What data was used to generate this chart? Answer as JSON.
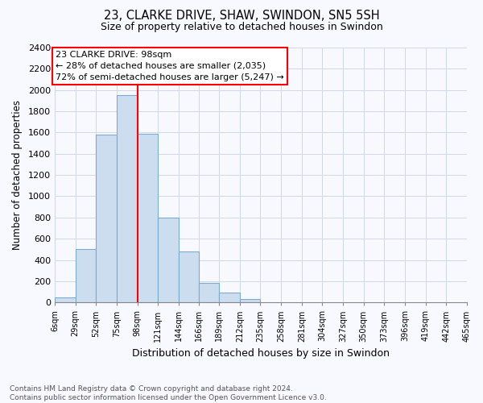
{
  "title1": "23, CLARKE DRIVE, SHAW, SWINDON, SN5 5SH",
  "title2": "Size of property relative to detached houses in Swindon",
  "xlabel": "Distribution of detached houses by size in Swindon",
  "ylabel": "Number of detached properties",
  "bin_edges": [
    6,
    29,
    52,
    75,
    98,
    121,
    144,
    166,
    189,
    212,
    235,
    258,
    281,
    304,
    327,
    350,
    373,
    396,
    419,
    442,
    465
  ],
  "bin_labels": [
    "6sqm",
    "29sqm",
    "52sqm",
    "75sqm",
    "98sqm",
    "121sqm",
    "144sqm",
    "166sqm",
    "189sqm",
    "212sqm",
    "235sqm",
    "258sqm",
    "281sqm",
    "304sqm",
    "327sqm",
    "350sqm",
    "373sqm",
    "396sqm",
    "419sqm",
    "442sqm",
    "465sqm"
  ],
  "bar_heights": [
    50,
    500,
    1580,
    1950,
    1590,
    800,
    480,
    185,
    90,
    30,
    0,
    0,
    0,
    0,
    0,
    0,
    0,
    0,
    0,
    0
  ],
  "bar_color": "#ccddf0",
  "bar_edge_color": "#7aaccc",
  "vline_x": 98,
  "vline_color": "red",
  "annotation_line1": "23 CLARKE DRIVE: 98sqm",
  "annotation_line2": "← 28% of detached houses are smaller (2,035)",
  "annotation_line3": "72% of semi-detached houses are larger (5,247) →",
  "annotation_box_color": "white",
  "annotation_box_edge_color": "red",
  "ylim": [
    0,
    2400
  ],
  "yticks": [
    0,
    200,
    400,
    600,
    800,
    1000,
    1200,
    1400,
    1600,
    1800,
    2000,
    2200,
    2400
  ],
  "footnote1": "Contains HM Land Registry data © Crown copyright and database right 2024.",
  "footnote2": "Contains public sector information licensed under the Open Government Licence v3.0.",
  "bg_color": "#f8f8ff",
  "grid_color": "#d0d8e8"
}
